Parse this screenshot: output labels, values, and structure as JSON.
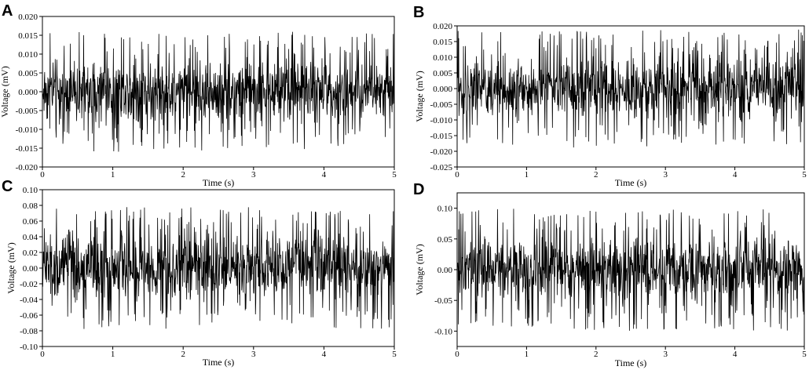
{
  "chart_data": [
    {
      "panel": "A",
      "type": "line",
      "xlabel": "Time (s)",
      "ylabel": "Voltage (mV)",
      "xlim": [
        0,
        5
      ],
      "ylim": [
        -0.02,
        0.02
      ],
      "x_ticks": [
        "0",
        "1",
        "2",
        "3",
        "4",
        "5"
      ],
      "y_ticks": [
        "0.020",
        "0.015",
        "0.010",
        "0.005",
        "0.000",
        "-0.005",
        "-0.010",
        "-0.015",
        "-0.020"
      ],
      "amplitude": 0.016,
      "series": [
        {
          "x_start": 0,
          "x_end": 5,
          "mean": 0.0,
          "peak_max": 0.016,
          "peak_min": -0.016
        }
      ]
    },
    {
      "panel": "B",
      "type": "line",
      "xlabel": "Time (s)",
      "ylabel": "Voltage (mV)",
      "xlim": [
        0,
        5
      ],
      "ylim": [
        -0.025,
        0.02
      ],
      "x_ticks": [
        "0",
        "1",
        "2",
        "3",
        "4",
        "5"
      ],
      "y_ticks": [
        "0.020",
        "0.015",
        "0.010",
        "0.005",
        "0.000",
        "-0.005",
        "-0.010",
        "-0.015",
        "-0.020",
        "-0.025"
      ],
      "amplitude": 0.019,
      "series": [
        {
          "x_start": 0,
          "x_end": 5,
          "mean": 0.0,
          "peak_max": 0.019,
          "peak_min": -0.019
        }
      ]
    },
    {
      "panel": "C",
      "type": "line",
      "xlabel": "Time (s)",
      "ylabel": "Voltage (mV)",
      "xlim": [
        0,
        5
      ],
      "ylim": [
        -0.1,
        0.1
      ],
      "x_ticks": [
        "0",
        "1",
        "2",
        "3",
        "4",
        "5"
      ],
      "y_ticks": [
        "0.10",
        "0.08",
        "0.06",
        "0.04",
        "0.02",
        "0.00",
        "-0.02",
        "-0.04",
        "-0.06",
        "-0.08",
        "-0.10"
      ],
      "amplitude": 0.078,
      "series": [
        {
          "x_start": 0,
          "x_end": 5,
          "mean": 0.0,
          "peak_max": 0.078,
          "peak_min": -0.08
        }
      ]
    },
    {
      "panel": "D",
      "type": "line",
      "xlabel": "Time (s)",
      "ylabel": "Voltage (mV)",
      "xlim": [
        0,
        5
      ],
      "ylim": [
        -0.125,
        0.125
      ],
      "x_ticks": [
        "0",
        "1",
        "2",
        "3",
        "4",
        "5"
      ],
      "y_ticks": [
        "0.10",
        "0.05",
        "0.00",
        "-0.05",
        "-0.10"
      ],
      "y_tick_values": [
        0.1,
        0.05,
        0.0,
        -0.05,
        -0.1
      ],
      "amplitude": 0.1,
      "series": [
        {
          "x_start": 0,
          "x_end": 5,
          "mean": 0.0,
          "peak_max": 0.1,
          "peak_min": -0.1
        }
      ]
    }
  ]
}
